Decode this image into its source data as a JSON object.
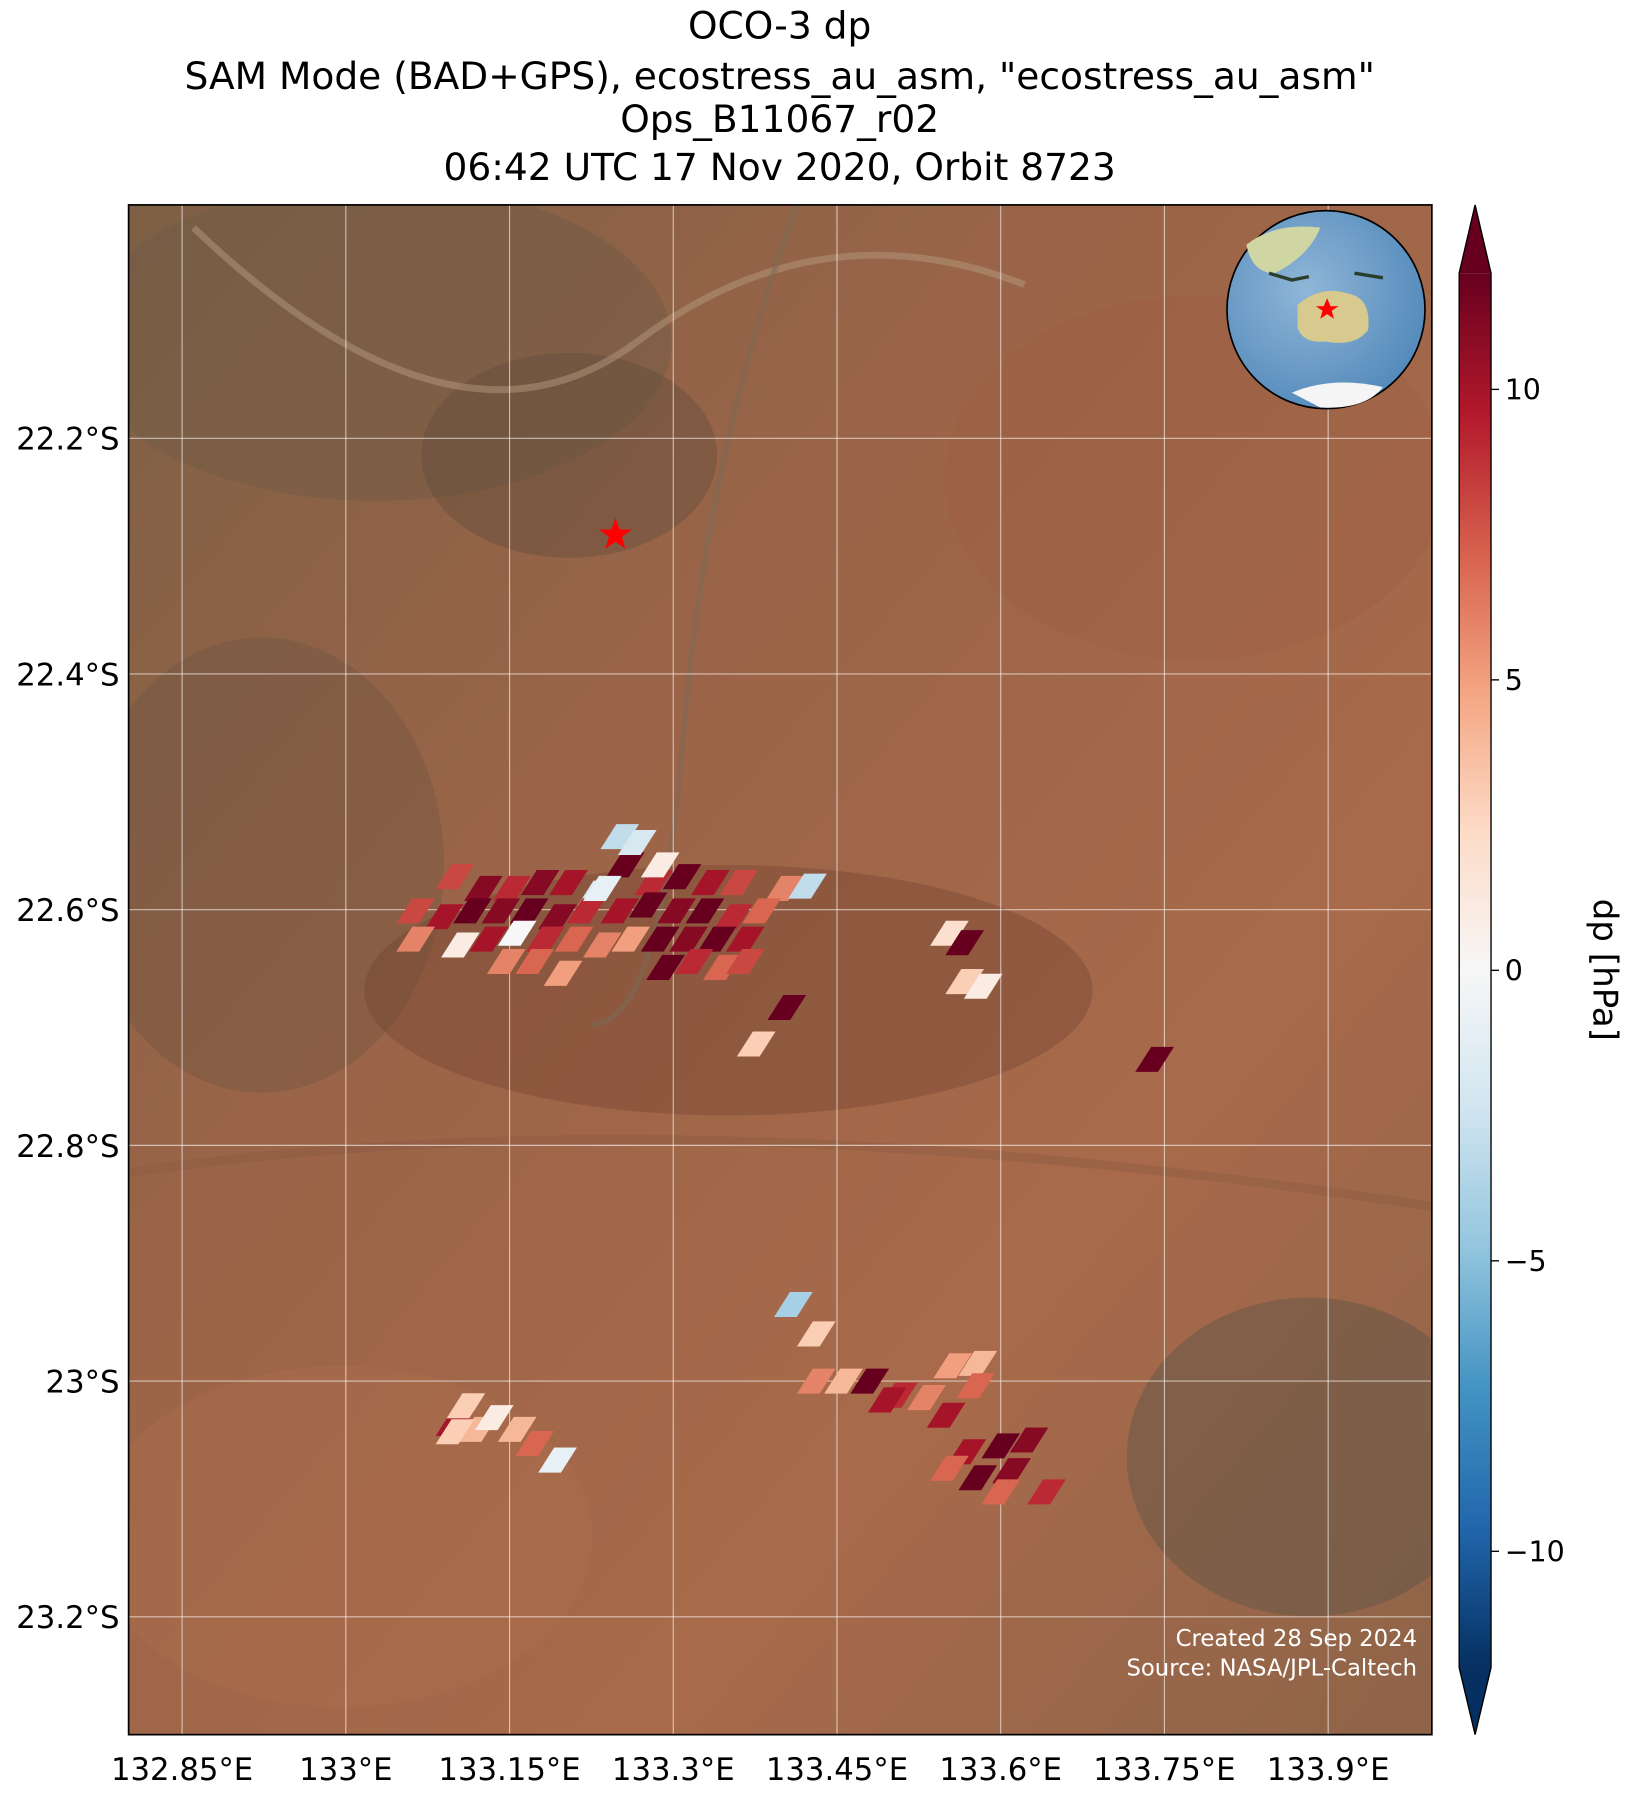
{
  "chart_data": {
    "type": "map",
    "title": [
      "OCO-3 dp",
      "SAM Mode (BAD+GPS), ecostress_au_asm, \"ecostress_au_asm\"",
      "Ops_B11067_r02",
      "06:42 UTC 17 Nov 2020, Orbit 8723"
    ],
    "xlim": [
      132.801,
      133.995
    ],
    "ylim": [
      -23.3,
      -22.002
    ],
    "xticks": [
      {
        "value": 132.85,
        "label": "132.85°E"
      },
      {
        "value": 133.0,
        "label": "133°E"
      },
      {
        "value": 133.15,
        "label": "133.15°E"
      },
      {
        "value": 133.3,
        "label": "133.3°E"
      },
      {
        "value": 133.45,
        "label": "133.45°E"
      },
      {
        "value": 133.6,
        "label": "133.6°E"
      },
      {
        "value": 133.75,
        "label": "133.75°E"
      },
      {
        "value": 133.9,
        "label": "133.9°E"
      }
    ],
    "yticks": [
      {
        "value": -22.2,
        "label": "22.2°S"
      },
      {
        "value": -22.4,
        "label": "22.4°S"
      },
      {
        "value": -22.6,
        "label": "22.6°S"
      },
      {
        "value": -22.8,
        "label": "22.8°S"
      },
      {
        "value": -23.0,
        "label": "23°S"
      },
      {
        "value": -23.2,
        "label": "23.2°S"
      }
    ],
    "grid": true,
    "site": {
      "lon": 133.247,
      "lat": -22.282,
      "color": "#ff0000"
    },
    "colormap": "RdBu_r",
    "colorbar": {
      "label": "dp [hPa]",
      "lim": [
        -12,
        12
      ],
      "ticks": [
        {
          "value": -10,
          "label": "−10"
        },
        {
          "value": -5,
          "label": "−5"
        },
        0,
        5,
        10
      ]
    },
    "soundings": {
      "lon": [
        133.1,
        133.126,
        133.152,
        133.178,
        133.204,
        133.23,
        133.256,
        133.282,
        133.308,
        133.334,
        133.36,
        133.402,
        133.423,
        133.064,
        133.09,
        133.116,
        133.142,
        133.168,
        133.194,
        133.22,
        133.251,
        133.277,
        133.303,
        133.329,
        133.355,
        133.381,
        133.064,
        133.105,
        133.131,
        133.157,
        133.183,
        133.209,
        133.235,
        133.261,
        133.288,
        133.314,
        133.34,
        133.366,
        133.147,
        133.173,
        133.199,
        133.293,
        133.319,
        133.345,
        133.366,
        133.251,
        133.267,
        133.235,
        133.288,
        133.553,
        133.567,
        133.567,
        133.584,
        133.404,
        133.376,
        133.741,
        133.41,
        133.431,
        133.431,
        133.456,
        133.48,
        133.506,
        133.532,
        133.556,
        133.579,
        133.55,
        133.577,
        133.496,
        133.1,
        133.11,
        133.121,
        133.136,
        133.157,
        133.173,
        133.194,
        133.1,
        133.569,
        133.6,
        133.626,
        133.553,
        133.579,
        133.61,
        133.6,
        133.642
      ],
      "lat": [
        -22.572,
        -22.582,
        -22.582,
        -22.577,
        -22.577,
        -22.586,
        -22.562,
        -22.577,
        -22.572,
        -22.577,
        -22.577,
        -22.582,
        -22.58,
        -22.601,
        -22.606,
        -22.601,
        -22.601,
        -22.601,
        -22.606,
        -22.601,
        -22.601,
        -22.596,
        -22.601,
        -22.601,
        -22.606,
        -22.601,
        -22.625,
        -22.63,
        -22.625,
        -22.62,
        -22.625,
        -22.625,
        -22.63,
        -22.625,
        -22.625,
        -22.625,
        -22.625,
        -22.625,
        -22.644,
        -22.644,
        -22.654,
        -22.649,
        -22.644,
        -22.649,
        -22.644,
        -22.538,
        -22.543,
        -22.582,
        -22.562,
        -22.62,
        -22.628,
        -22.661,
        -22.665,
        -22.683,
        -22.714,
        -22.727,
        -22.935,
        -22.96,
        -23.0,
        -23.0,
        -23.0,
        -23.012,
        -23.014,
        -22.987,
        -22.985,
        -23.029,
        -23.004,
        -23.016,
        -23.036,
        -23.021,
        -23.041,
        -23.031,
        -23.041,
        -23.053,
        -23.067,
        -23.043,
        -23.06,
        -23.055,
        -23.05,
        -23.074,
        -23.082,
        -23.076,
        -23.094,
        -23.094
      ],
      "values": [
        8,
        11,
        9,
        11,
        10,
        -2,
        12,
        9,
        12,
        10,
        8,
        6,
        -3,
        8,
        10,
        12,
        11,
        12,
        11,
        9,
        10,
        12,
        11,
        12,
        9,
        7,
        6,
        1,
        10,
        0,
        9,
        7,
        6,
        5,
        12,
        11,
        12,
        10,
        6,
        7,
        5,
        12,
        9,
        7,
        8,
        -3,
        -2,
        -1,
        1,
        2,
        12,
        3,
        1,
        12,
        3,
        12,
        -4,
        3,
        6,
        4,
        12,
        9,
        6,
        5,
        4,
        10,
        7,
        10,
        10,
        3,
        4,
        1,
        4,
        7,
        -1,
        3,
        10,
        12,
        11,
        7,
        12,
        11,
        7,
        9
      ]
    },
    "credits": [
      "Created 28 Sep 2024",
      "Source: NASA/JPL-Caltech"
    ]
  }
}
